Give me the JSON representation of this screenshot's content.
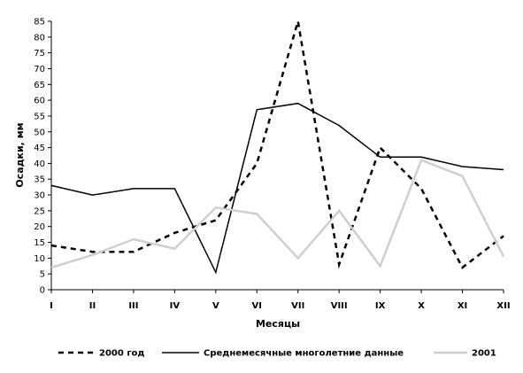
{
  "chart_data": {
    "type": "line",
    "xlabel": "Месяцы",
    "ylabel": "Осадки, мм",
    "ylim": [
      0,
      85
    ],
    "yticks": [
      0,
      5,
      10,
      15,
      20,
      25,
      30,
      35,
      40,
      45,
      50,
      55,
      60,
      65,
      70,
      75,
      80,
      85
    ],
    "grid": false,
    "legend_position": "bottom",
    "categories": [
      "I",
      "II",
      "III",
      "IV",
      "V",
      "VI",
      "VII",
      "VIII",
      "IX",
      "X",
      "XI",
      "XII"
    ],
    "series": [
      {
        "name": "2000 год",
        "style": "dashed",
        "color": "#000000",
        "values": [
          14,
          12,
          12,
          18,
          22,
          40,
          85,
          8,
          45,
          32,
          7,
          17
        ]
      },
      {
        "name": "Среднемесячные многолетние данные",
        "style": "solid",
        "color": "#000000",
        "values": [
          33,
          30,
          32,
          32,
          5.5,
          57,
          59,
          52,
          42,
          42,
          39,
          38
        ]
      },
      {
        "name": "2001",
        "style": "solid",
        "color": "#cfcfcf",
        "values": [
          7,
          11,
          16,
          13,
          26,
          24,
          10,
          25,
          7.5,
          41,
          36,
          10.5
        ]
      }
    ]
  }
}
